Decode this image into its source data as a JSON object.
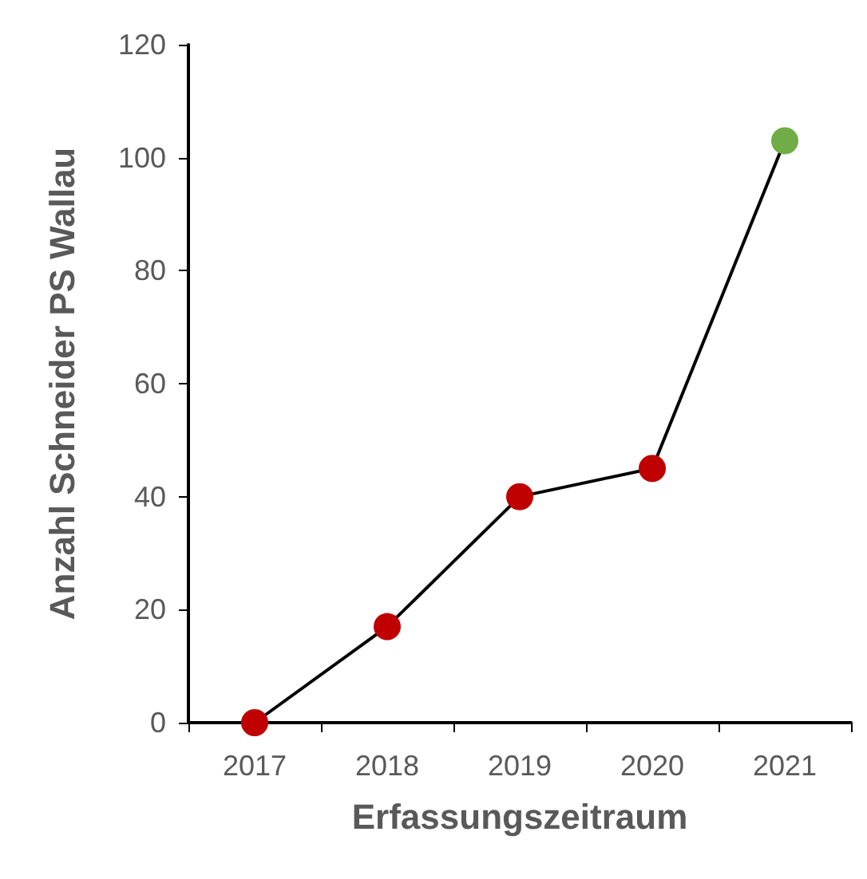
{
  "chart_data": {
    "type": "line",
    "xlabel": "Erfassungszeitraum",
    "ylabel": "Anzahl Schneider PS Wallau",
    "categories": [
      "2017",
      "2018",
      "2019",
      "2020",
      "2021"
    ],
    "series": [
      {
        "color": "#000000",
        "values": [
          0,
          17,
          40,
          45,
          103
        ],
        "colors": [
          "#c00000",
          "#c00000",
          "#c00000",
          "#c00000",
          "#70ad47"
        ]
      }
    ],
    "ylim": [
      0,
      120
    ],
    "yticks": [
      0,
      20,
      40,
      60,
      80,
      100,
      120
    ],
    "marker": "circle",
    "line_style": "solid",
    "grid": false
  }
}
